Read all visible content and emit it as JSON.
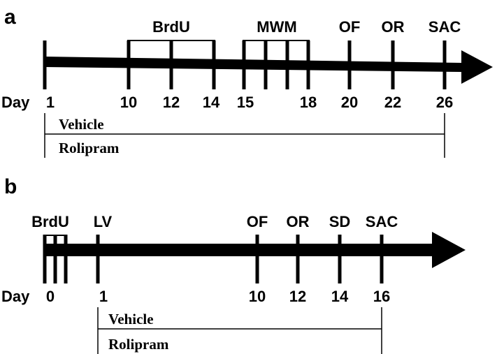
{
  "panels": [
    {
      "letter": "a",
      "day_prefix": "Day",
      "days": [
        "1",
        "10",
        "12",
        "14",
        "15",
        "18",
        "20",
        "22",
        "26"
      ],
      "events": [
        "BrdU",
        "MWM",
        "OF",
        "OR",
        "SAC"
      ],
      "groups": [
        "Vehicle",
        "Rolipram"
      ]
    },
    {
      "letter": "b",
      "day_prefix": "Day",
      "days": [
        "0",
        "1",
        "10",
        "12",
        "14",
        "16"
      ],
      "events": [
        "BrdU",
        "LV",
        "OF",
        "OR",
        "SD",
        "SAC"
      ],
      "groups": [
        "Vehicle",
        "Rolipram"
      ]
    }
  ],
  "colors": {
    "ink": "#000000",
    "background": "#ffffff"
  }
}
